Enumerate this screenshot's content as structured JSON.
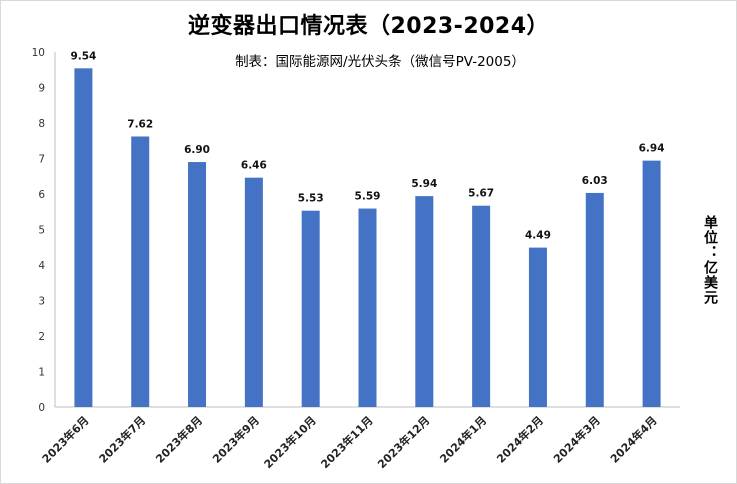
{
  "chart_data": {
    "type": "bar",
    "title": "逆变器出口情况表（2023-2024）",
    "subtitle": "制表：国际能源网/光伏头条（微信号PV-2005）",
    "ylabel": "单位：亿美元",
    "xlabel": "",
    "ylim": [
      0,
      10
    ],
    "yticks": [
      "0",
      "1",
      "2",
      "3",
      "4",
      "5",
      "6",
      "7",
      "8",
      "9",
      "10"
    ],
    "categories": [
      "2023年6月",
      "2023年7月",
      "2023年8月",
      "2023年9月",
      "2023年10月",
      "2023年11月",
      "2023年12月",
      "2024年1月",
      "2024年2月",
      "2024年3月",
      "2024年4月"
    ],
    "values": [
      9.54,
      7.62,
      6.9,
      6.46,
      5.53,
      5.59,
      5.94,
      5.67,
      4.49,
      6.03,
      6.94
    ],
    "value_labels": [
      "9.54",
      "7.62",
      "6.90",
      "6.46",
      "5.53",
      "5.59",
      "5.94",
      "5.67",
      "4.49",
      "6.03",
      "6.94"
    ],
    "bar_color": "#4472C4",
    "axis_color": "#bfbfbf",
    "grid": false,
    "legend": "none"
  }
}
